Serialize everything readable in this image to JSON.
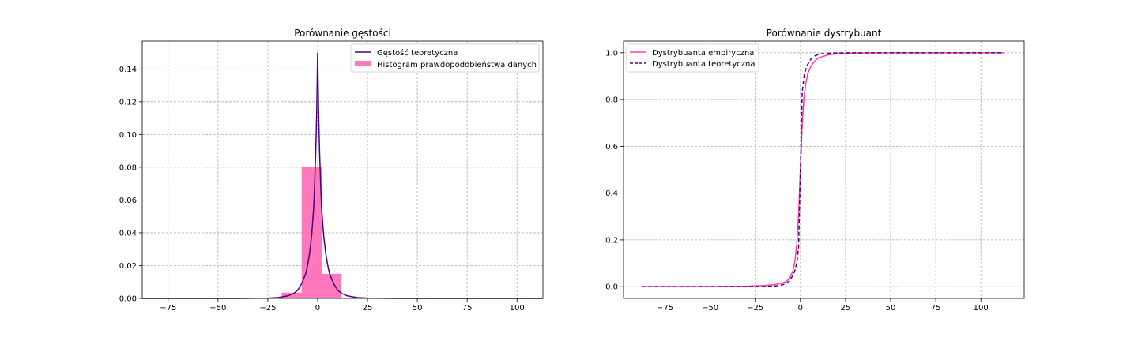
{
  "charts": [
    {
      "title": "Porównanie gęstości",
      "chart_data": {
        "type": "bar+line",
        "title": "Porównanie gęstości",
        "xlabel": "",
        "ylabel": "",
        "xlim": [
          -88,
          113
        ],
        "ylim": [
          0,
          0.157
        ],
        "grid": true,
        "legend_position": "top-right",
        "xticks": [
          -75,
          -50,
          -25,
          0,
          25,
          50,
          75,
          100
        ],
        "xtick_labels": [
          "−75",
          "−50",
          "−25",
          "0",
          "25",
          "50",
          "75",
          "100"
        ],
        "yticks": [
          0,
          0.02,
          0.04,
          0.06,
          0.08,
          0.1,
          0.12,
          0.14
        ],
        "ytick_labels": [
          "0.00",
          "0.02",
          "0.04",
          "0.06",
          "0.08",
          "0.10",
          "0.12",
          "0.14"
        ],
        "series": [
          {
            "name": "Gęstość teoretyczna",
            "kind": "line",
            "color": "#4b0082",
            "x": [
              -88,
              -40,
              -30,
              -25,
              -20,
              -15,
              -12,
              -10,
              -8,
              -6,
              -5,
              -4,
              -3,
              -2,
              -1.5,
              -1,
              -0.5,
              0,
              0.5,
              1,
              1.5,
              2,
              3,
              4,
              5,
              6,
              8,
              10,
              12,
              15,
              20,
              25,
              30,
              40,
              113
            ],
            "y": [
              0,
              0.0,
              0.0001,
              0.0002,
              0.0005,
              0.0015,
              0.003,
              0.005,
              0.009,
              0.015,
              0.0205,
              0.028,
              0.0385,
              0.055,
              0.07,
              0.088,
              0.112,
              0.15,
              0.112,
              0.088,
              0.07,
              0.055,
              0.0385,
              0.028,
              0.0205,
              0.015,
              0.009,
              0.005,
              0.003,
              0.0015,
              0.0005,
              0.0002,
              0.0001,
              0.0,
              0
            ]
          },
          {
            "name": "Histogram prawdopodobieństwa danych",
            "kind": "bar",
            "color": "#ff69b4",
            "bin_edges": [
              -88,
              -78,
              -68,
              -58,
              -48,
              -38,
              -28,
              -18,
              -8,
              2,
              12,
              22,
              32,
              42,
              52,
              62,
              72,
              82,
              92,
              102,
              113
            ],
            "values": [
              5e-05,
              5e-05,
              5e-05,
              5e-05,
              5e-05,
              0.0001,
              0.0003,
              0.0035,
              0.08,
              0.015,
              0.0005,
              0.0001,
              5e-05,
              5e-05,
              5e-05,
              5e-05,
              5e-05,
              5e-05,
              5e-05,
              5e-05
            ]
          }
        ]
      }
    },
    {
      "title": "Porównanie dystrybuant",
      "chart_data": {
        "type": "line",
        "title": "Porównanie dystrybuant",
        "xlabel": "",
        "ylabel": "",
        "xlim": [
          -98,
          124
        ],
        "ylim": [
          -0.05,
          1.05
        ],
        "grid": true,
        "legend_position": "top-left",
        "xticks": [
          -75,
          -50,
          -25,
          0,
          25,
          50,
          75,
          100
        ],
        "xtick_labels": [
          "−75",
          "−50",
          "−25",
          "0",
          "25",
          "50",
          "75",
          "100"
        ],
        "yticks": [
          0,
          0.2,
          0.4,
          0.6,
          0.8,
          1.0
        ],
        "ytick_labels": [
          "0.0",
          "0.2",
          "0.4",
          "0.6",
          "0.8",
          "1.0"
        ],
        "series": [
          {
            "name": "Dystrybuanta empiryczna",
            "kind": "line",
            "style": "solid",
            "color": "#ff3ea5",
            "x": [
              -88,
              -50,
              -30,
              -20,
              -15,
              -10,
              -8,
              -6,
              -4,
              -3,
              -2,
              -1,
              0,
              1,
              2,
              3,
              4,
              6,
              8,
              10,
              15,
              20,
              30,
              50,
              113
            ],
            "y": [
              0,
              0.0005,
              0.002,
              0.005,
              0.008,
              0.015,
              0.022,
              0.035,
              0.07,
              0.11,
              0.18,
              0.31,
              0.5,
              0.69,
              0.81,
              0.87,
              0.91,
              0.945,
              0.965,
              0.978,
              0.99,
              0.996,
              0.999,
              1.0,
              1.0
            ]
          },
          {
            "name": "Dystrybuanta teoretyczna",
            "kind": "line",
            "style": "dashed",
            "color": "#4b0082",
            "x": [
              -88,
              -40,
              -25,
              -20,
              -15,
              -12,
              -10,
              -8,
              -6,
              -4,
              -3,
              -2,
              -1,
              0,
              1,
              2,
              3,
              4,
              6,
              8,
              10,
              12,
              15,
              20,
              25,
              40,
              113
            ],
            "y": [
              0,
              0.0,
              0.0003,
              0.0008,
              0.0022,
              0.0045,
              0.0075,
              0.0135,
              0.025,
              0.05,
              0.07,
              0.1,
              0.17,
              0.5,
              0.83,
              0.9,
              0.93,
              0.95,
              0.975,
              0.9865,
              0.9925,
              0.9955,
              0.9978,
              0.9992,
              0.9997,
              1.0,
              1.0
            ]
          }
        ]
      }
    }
  ]
}
